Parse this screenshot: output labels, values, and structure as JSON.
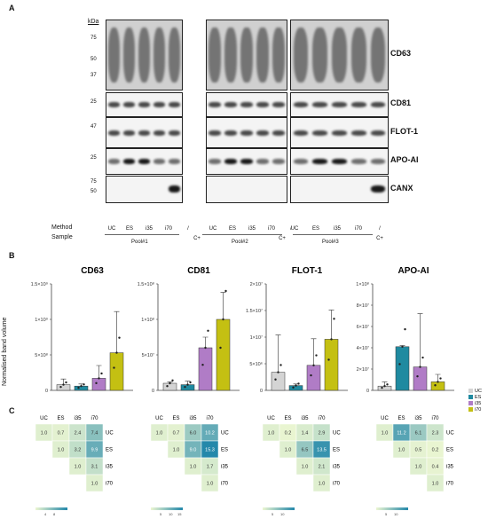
{
  "panel_a": {
    "letter": "A",
    "kda_label": "kDa",
    "method_label": "Method",
    "sample_label": "Sample",
    "lanes": [
      "UC",
      "ES",
      "i35",
      "i70",
      "/",
      "UC",
      "ES",
      "i35",
      "i70",
      "/",
      "UC",
      "ES",
      "i35",
      "i70",
      "/"
    ],
    "lanes_row2": [
      "C+",
      "C+",
      "C+"
    ],
    "pools": [
      "Pool#1",
      "Pool#2",
      "Pool#3"
    ],
    "blots": [
      {
        "name": "CD63",
        "markers": [
          "75",
          "50",
          "37"
        ]
      },
      {
        "name": "CD81",
        "markers": [
          "25"
        ]
      },
      {
        "name": "FLOT-1",
        "markers": [
          "47"
        ]
      },
      {
        "name": "APO-AI",
        "markers": [
          "25"
        ]
      },
      {
        "name": "CANX",
        "markers": [
          "75",
          "50"
        ]
      }
    ]
  },
  "panel_b": {
    "letter": "B",
    "ylabel": "Normalised band volume",
    "legend": [
      {
        "label": "UC",
        "color": "#d4d4d4"
      },
      {
        "label": "ES",
        "color": "#1f8aa0"
      },
      {
        "label": "i35",
        "color": "#b07cc6"
      },
      {
        "label": "i70",
        "color": "#c4c012"
      }
    ]
  },
  "chart_data": [
    {
      "type": "bar",
      "title": "CD63",
      "categories": [
        "UC",
        "ES",
        "i35",
        "i70"
      ],
      "ylim": [
        0,
        1500000000
      ],
      "yticks": [
        "0",
        "5×10⁸",
        "1×10⁹",
        "1.5×10⁹"
      ],
      "values": [
        80000000,
        60000000,
        170000000,
        530000000
      ],
      "errors": [
        80000000,
        30000000,
        180000000,
        580000000
      ]
    },
    {
      "type": "bar",
      "title": "CD81",
      "categories": [
        "UC",
        "ES",
        "i35",
        "i70"
      ],
      "ylim": [
        0,
        150000000
      ],
      "yticks": [
        "0",
        "5×10⁷",
        "1×10⁸",
        "1.5×10⁸"
      ],
      "values": [
        10000000,
        8000000,
        60000000,
        100000000
      ],
      "errors": [
        2000000,
        5000000,
        15000000,
        38000000
      ]
    },
    {
      "type": "bar",
      "title": "FLOT-1",
      "categories": [
        "UC",
        "ES",
        "i35",
        "i70"
      ],
      "ylim": [
        0,
        20000000
      ],
      "yticks": [
        "0",
        "5×10⁶",
        "1×10⁷",
        "1.5×10⁷",
        "2×10⁷"
      ],
      "values": [
        3400000,
        900000,
        4700000,
        9600000
      ],
      "errors": [
        7000000,
        300000,
        5000000,
        5500000
      ]
    },
    {
      "type": "bar",
      "title": "APO-AI",
      "categories": [
        "UC",
        "ES",
        "i35",
        "i70"
      ],
      "ylim": [
        0,
        100000000
      ],
      "yticks": [
        "0",
        "2×10⁷",
        "4×10⁷",
        "6×10⁷",
        "8×10⁷",
        "1×10⁸"
      ],
      "values": [
        4000000,
        41000000,
        22000000,
        8000000
      ],
      "errors": [
        4000000,
        1000000,
        50000000,
        7000000
      ]
    }
  ],
  "panel_c": {
    "letter": "C",
    "cols": [
      "UC",
      "ES",
      "i35",
      "i70"
    ],
    "rows": [
      "UC",
      "ES",
      "i35",
      "i70"
    ],
    "matrices": [
      {
        "values": [
          [
            "1.0",
            "0.7",
            "2.4",
            "7.4"
          ],
          [
            "",
            "1.0",
            "3.2",
            "9.9"
          ],
          [
            "",
            "",
            "1.0",
            "3.1"
          ],
          [
            "",
            "",
            "",
            "1.0"
          ]
        ],
        "legend_ticks": [
          "4",
          "8"
        ]
      },
      {
        "values": [
          [
            "1.0",
            "0.7",
            "6.0",
            "10.2"
          ],
          [
            "",
            "1.0",
            "9.0",
            "15.3"
          ],
          [
            "",
            "",
            "1.0",
            "1.7"
          ],
          [
            "",
            "",
            "",
            "1.0"
          ]
        ],
        "legend_ticks": [
          "5",
          "10",
          "15"
        ]
      },
      {
        "values": [
          [
            "1.0",
            "0.2",
            "1.4",
            "2.9"
          ],
          [
            "",
            "1.0",
            "6.5",
            "13.5"
          ],
          [
            "",
            "",
            "1.0",
            "2.1"
          ],
          [
            "",
            "",
            "",
            "1.0"
          ]
        ],
        "legend_ticks": [
          "5",
          "10"
        ]
      },
      {
        "values": [
          [
            "1.0",
            "11.2",
            "6.1",
            "2.3"
          ],
          [
            "",
            "1.0",
            "0.5",
            "0.2"
          ],
          [
            "",
            "",
            "1.0",
            "0.4"
          ],
          [
            "",
            "",
            "",
            "1.0"
          ]
        ],
        "legend_ticks": [
          "5",
          "10"
        ]
      }
    ]
  }
}
